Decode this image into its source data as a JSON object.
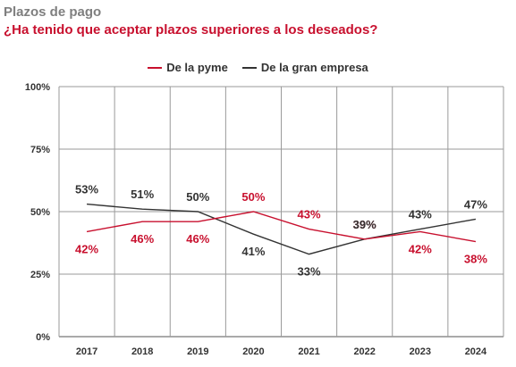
{
  "header": {
    "title": "Plazos de pago",
    "subtitle": "¿Ha tenido que aceptar plazos superiores a los deseados?"
  },
  "colors": {
    "pyme": "#c8102e",
    "gran_empresa": "#333333",
    "title": "#7f7f7f"
  },
  "chart_data": {
    "type": "line",
    "title": "Plazos de pago",
    "subtitle": "¿Ha tenido que aceptar plazos superiores a los deseados?",
    "x": [
      "2017",
      "2018",
      "2019",
      "2020",
      "2021",
      "2022",
      "2023",
      "2024"
    ],
    "y_ticks": [
      "0%",
      "25%",
      "50%",
      "75%",
      "100%"
    ],
    "ylim": [
      0,
      100
    ],
    "grid": true,
    "legend": "top-center",
    "series": [
      {
        "name": "De la pyme",
        "color": "#c8102e",
        "values": [
          42,
          46,
          46,
          50,
          43,
          39,
          42,
          38
        ],
        "labels": [
          "42%",
          "46%",
          "46%",
          "50%",
          "43%",
          "39%",
          "42%",
          "38%"
        ]
      },
      {
        "name": "De la gran empresa",
        "color": "#333333",
        "values": [
          53,
          51,
          50,
          41,
          33,
          39,
          43,
          47
        ],
        "labels": [
          "53%",
          "51%",
          "50%",
          "41%",
          "33%",
          "39%",
          "43%",
          "47%"
        ]
      }
    ]
  }
}
